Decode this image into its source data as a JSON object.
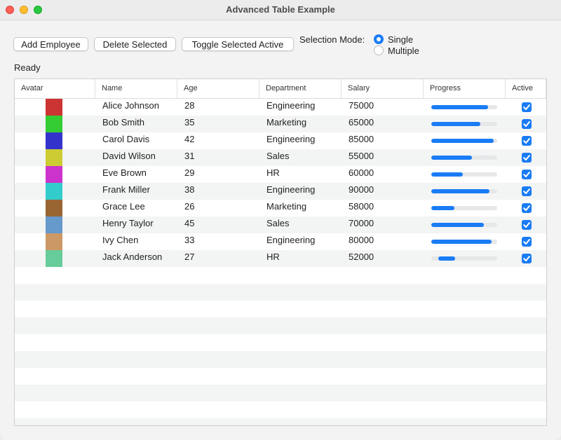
{
  "window": {
    "title": "Advanced Table Example"
  },
  "toolbar": {
    "add_label": "Add Employee",
    "delete_label": "Delete Selected",
    "toggle_label": "Toggle Selected Active",
    "mode_label": "Selection Mode:",
    "mode_options": [
      "Single",
      "Multiple"
    ],
    "mode_selected": "Single"
  },
  "status": "Ready",
  "table": {
    "columns": [
      "Avatar",
      "Name",
      "Age",
      "Department",
      "Salary",
      "Progress",
      "Active"
    ],
    "rows": [
      {
        "color": "#cc3333",
        "name": "Alice Johnson",
        "age": "28",
        "department": "Engineering",
        "salary": "75000",
        "progress": 0.86,
        "active": true
      },
      {
        "color": "#33cc33",
        "name": "Bob Smith",
        "age": "35",
        "department": "Marketing",
        "salary": "65000",
        "progress": 0.74,
        "active": true
      },
      {
        "color": "#3333cc",
        "name": "Carol Davis",
        "age": "42",
        "department": "Engineering",
        "salary": "85000",
        "progress": 0.95,
        "active": true
      },
      {
        "color": "#cccc33",
        "name": "David Wilson",
        "age": "31",
        "department": "Sales",
        "salary": "55000",
        "progress": 0.62,
        "active": true
      },
      {
        "color": "#cc33cc",
        "name": "Eve Brown",
        "age": "29",
        "department": "HR",
        "salary": "60000",
        "progress": 0.48,
        "active": true
      },
      {
        "color": "#33cccc",
        "name": "Frank Miller",
        "age": "38",
        "department": "Engineering",
        "salary": "90000",
        "progress": 0.88,
        "active": true
      },
      {
        "color": "#996633",
        "name": "Grace Lee",
        "age": "26",
        "department": "Marketing",
        "salary": "58000",
        "progress": 0.35,
        "active": true
      },
      {
        "color": "#6699cc",
        "name": "Henry Taylor",
        "age": "45",
        "department": "Sales",
        "salary": "70000",
        "progress": 0.8,
        "active": true
      },
      {
        "color": "#cc9966",
        "name": "Ivy Chen",
        "age": "33",
        "department": "Engineering",
        "salary": "80000",
        "progress": 0.92,
        "active": true
      },
      {
        "color": "#66cc99",
        "name": "Jack Anderson",
        "age": "27",
        "department": "HR",
        "salary": "52000",
        "progress": [
          0.11,
          0.36
        ],
        "active": true
      }
    ]
  }
}
